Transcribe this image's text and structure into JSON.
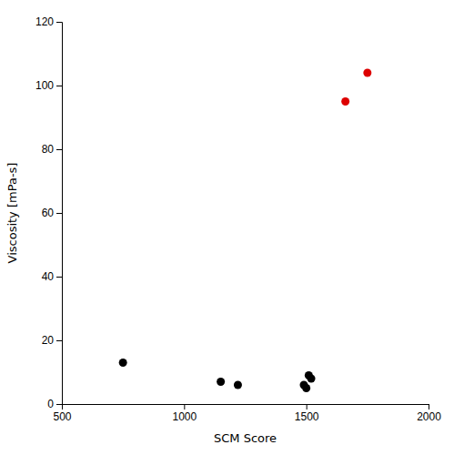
{
  "chart_data": {
    "type": "scatter",
    "xlabel": "SCM Score",
    "ylabel": "Viscosity [mPa-s]",
    "series": [
      {
        "color": "#000000",
        "x": [
          750,
          1150,
          1220,
          1490,
          1500,
          1510,
          1520
        ],
        "values": [
          13,
          7,
          6,
          6,
          5,
          9,
          8
        ]
      },
      {
        "color": "#dd0000",
        "x": [
          1660,
          1750
        ],
        "values": [
          95,
          104
        ]
      }
    ],
    "xlim": [
      500,
      2000
    ],
    "ylim": [
      0,
      120
    ],
    "xticks": [
      500,
      1000,
      1500,
      2000
    ],
    "yticks": [
      0,
      20,
      40,
      60,
      80,
      100,
      120
    ]
  }
}
